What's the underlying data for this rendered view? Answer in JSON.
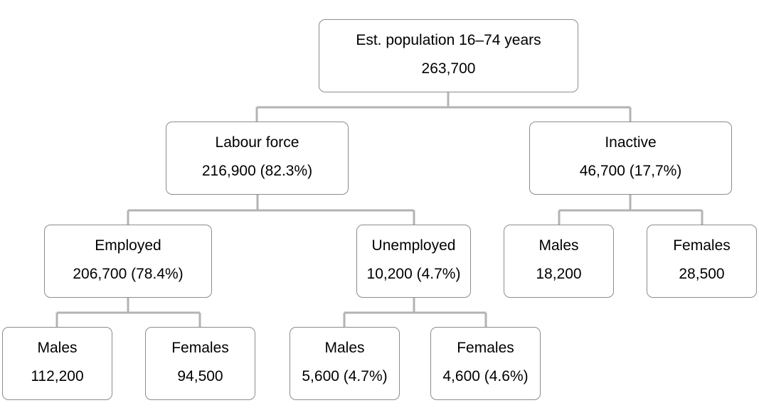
{
  "diagram": {
    "root": {
      "label": "Est. population 16–74 years",
      "value": "263,700"
    },
    "labour_force": {
      "label": "Labour force",
      "value": "216,900 (82.3%)"
    },
    "inactive": {
      "label": "Inactive",
      "value": "46,700 (17,7%)"
    },
    "employed": {
      "label": "Employed",
      "value": "206,700 (78.4%)"
    },
    "unemployed": {
      "label": "Unemployed",
      "value": "10,200 (4.7%)"
    },
    "inactive_males": {
      "label": "Males",
      "value": "18,200"
    },
    "inactive_females": {
      "label": "Females",
      "value": "28,500"
    },
    "employed_males": {
      "label": "Males",
      "value": "112,200"
    },
    "employed_females": {
      "label": "Females",
      "value": "94,500"
    },
    "unemployed_males": {
      "label": "Males",
      "value": "5,600 (4.7%)"
    },
    "unemployed_females": {
      "label": "Females",
      "value": "4,600 (4.6%)"
    }
  },
  "colors": {
    "connector": "#b3b3b3",
    "box_border": "#8c8c8c",
    "text": "#000000",
    "background": "#ffffff"
  }
}
